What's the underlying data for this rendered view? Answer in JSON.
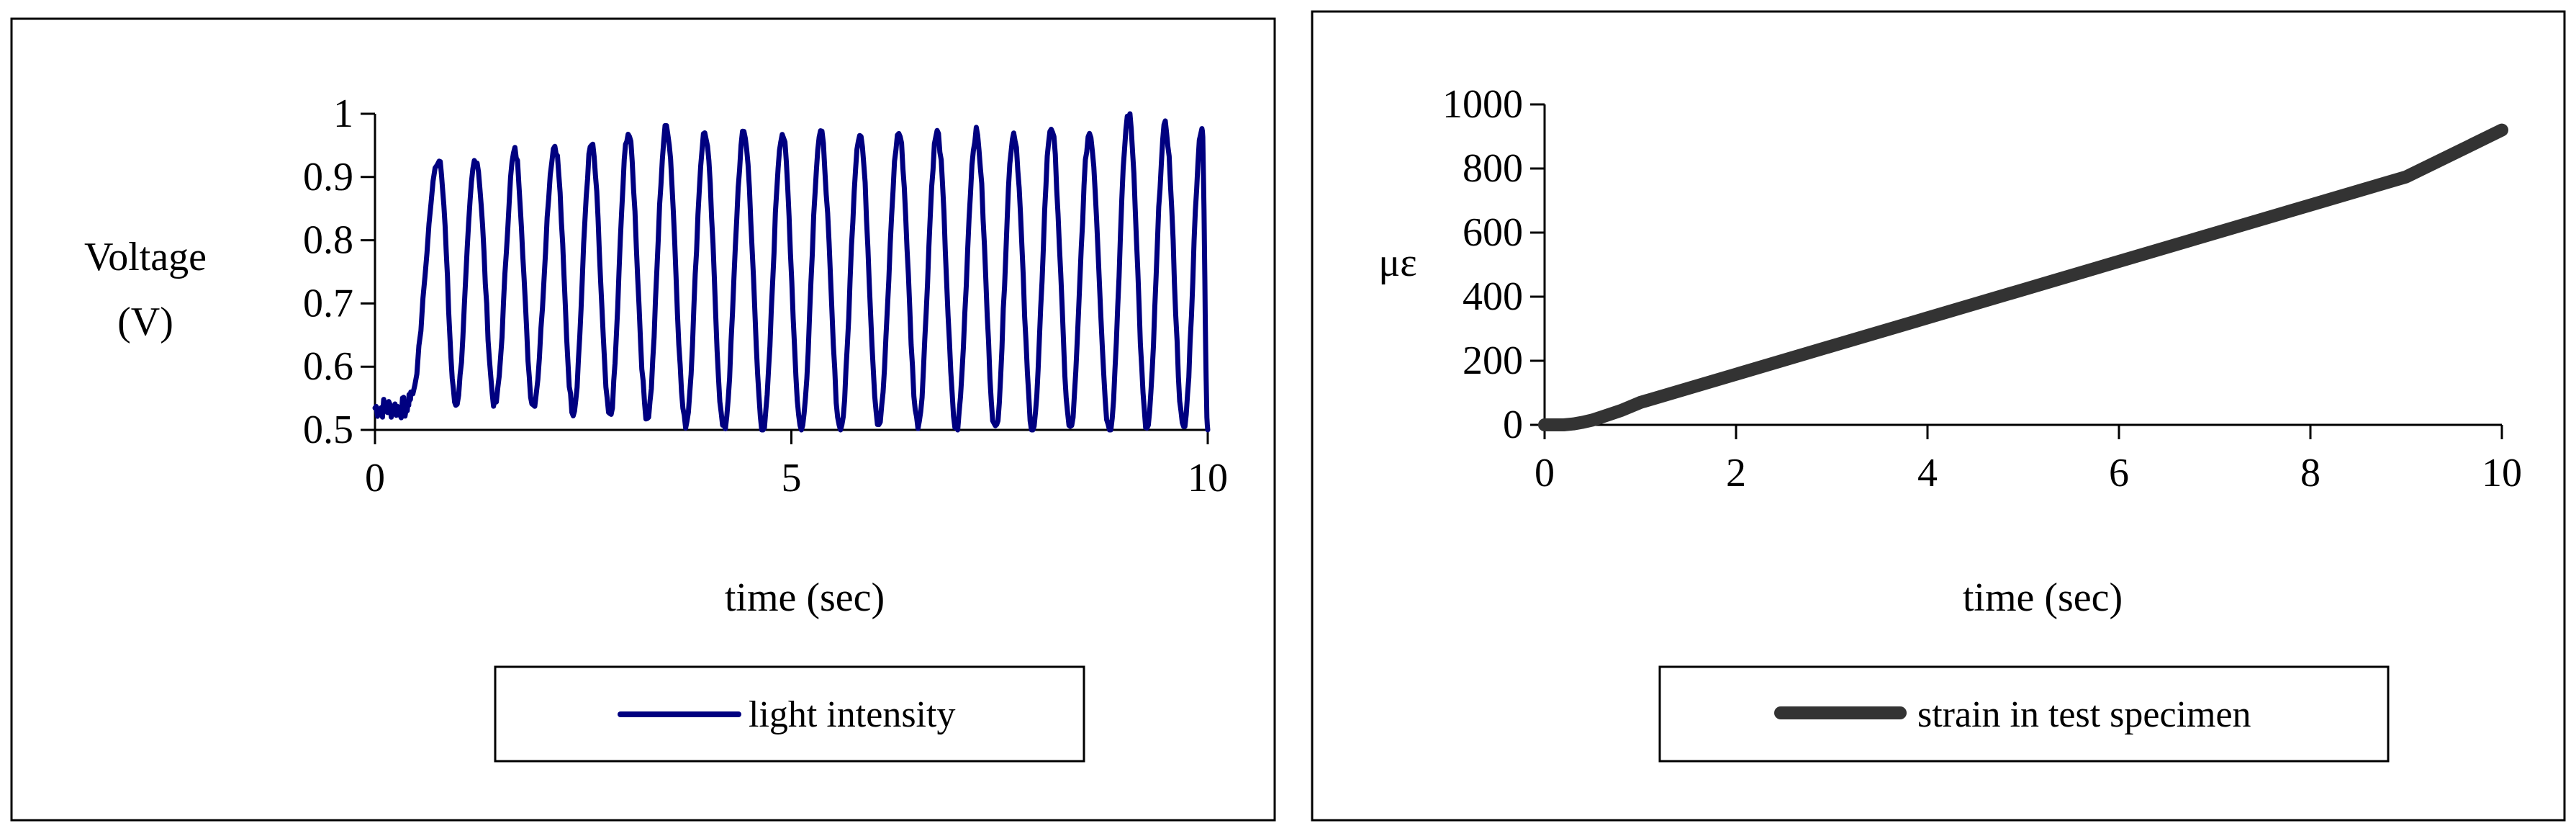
{
  "chart_data": [
    {
      "type": "line",
      "xlabel": "time (sec)",
      "ylabel_lines": [
        "Voltage",
        "(V)"
      ],
      "xlim": [
        0,
        10
      ],
      "ylim": [
        0.5,
        1.0
      ],
      "xticks": [
        0,
        5,
        10
      ],
      "xtick_labels": [
        "0",
        "5",
        "10"
      ],
      "yticks": [
        0.5,
        0.6,
        0.7,
        0.8,
        0.9,
        1.0
      ],
      "ytick_labels": [
        "0.5",
        "0.6",
        "0.7",
        "0.8",
        "0.9",
        "1"
      ],
      "grid": false,
      "legend_position": "bottom",
      "series": [
        {
          "name": "light intensity",
          "color": "#000080",
          "baseline": {
            "x_end": 0.38,
            "value": 0.535
          },
          "peaks": [
            {
              "t": 0.77,
              "v": 0.93
            },
            {
              "t": 1.21,
              "v": 0.93
            },
            {
              "t": 1.68,
              "v": 0.94
            },
            {
              "t": 2.16,
              "v": 0.95
            },
            {
              "t": 2.6,
              "v": 0.95
            },
            {
              "t": 3.04,
              "v": 0.97
            },
            {
              "t": 3.5,
              "v": 0.98
            },
            {
              "t": 3.96,
              "v": 0.97
            },
            {
              "t": 4.43,
              "v": 0.97
            },
            {
              "t": 4.89,
              "v": 0.97
            },
            {
              "t": 5.35,
              "v": 0.97
            },
            {
              "t": 5.82,
              "v": 0.97
            },
            {
              "t": 6.29,
              "v": 0.97
            },
            {
              "t": 6.75,
              "v": 0.97
            },
            {
              "t": 7.22,
              "v": 0.97
            },
            {
              "t": 7.67,
              "v": 0.97
            },
            {
              "t": 8.12,
              "v": 0.98
            },
            {
              "t": 8.58,
              "v": 0.97
            },
            {
              "t": 9.05,
              "v": 1.0
            },
            {
              "t": 9.49,
              "v": 0.98
            },
            {
              "t": 9.93,
              "v": 0.98
            }
          ],
          "troughs": [
            {
              "t": 0.97,
              "v": 0.54
            },
            {
              "t": 1.44,
              "v": 0.54
            },
            {
              "t": 1.9,
              "v": 0.54
            },
            {
              "t": 2.38,
              "v": 0.53
            },
            {
              "t": 2.82,
              "v": 0.52
            },
            {
              "t": 3.27,
              "v": 0.52
            },
            {
              "t": 3.73,
              "v": 0.51
            },
            {
              "t": 4.19,
              "v": 0.5
            },
            {
              "t": 4.66,
              "v": 0.5
            },
            {
              "t": 5.12,
              "v": 0.5
            },
            {
              "t": 5.59,
              "v": 0.5
            },
            {
              "t": 6.05,
              "v": 0.51
            },
            {
              "t": 6.52,
              "v": 0.51
            },
            {
              "t": 6.98,
              "v": 0.5
            },
            {
              "t": 7.45,
              "v": 0.5
            },
            {
              "t": 7.9,
              "v": 0.5
            },
            {
              "t": 8.35,
              "v": 0.5
            },
            {
              "t": 8.82,
              "v": 0.5
            },
            {
              "t": 9.27,
              "v": 0.5
            },
            {
              "t": 9.71,
              "v": 0.5
            }
          ],
          "end": {
            "t": 10.0,
            "v": 0.5
          }
        }
      ]
    },
    {
      "type": "line",
      "xlabel": "time (sec)",
      "ylabel": "με",
      "xlim": [
        0,
        10
      ],
      "ylim": [
        0,
        1000
      ],
      "xticks": [
        0,
        2,
        4,
        6,
        8,
        10
      ],
      "xtick_labels": [
        "0",
        "2",
        "4",
        "6",
        "8",
        "10"
      ],
      "yticks": [
        0,
        200,
        400,
        600,
        800,
        1000
      ],
      "ytick_labels": [
        "0",
        "200",
        "400",
        "600",
        "800",
        "1000"
      ],
      "grid": false,
      "legend_position": "bottom",
      "series": [
        {
          "name": "strain in test specimen",
          "color": "#333333",
          "x": [
            0,
            0.2,
            0.3,
            0.4,
            0.5,
            0.6,
            0.8,
            1.0,
            2,
            3,
            4,
            5,
            6,
            7,
            8,
            9,
            10
          ],
          "y": [
            0,
            0,
            3,
            8,
            15,
            25,
            45,
            70,
            158,
            246,
            334,
            422,
            510,
            598,
            686,
            774,
            920
          ]
        }
      ]
    }
  ]
}
